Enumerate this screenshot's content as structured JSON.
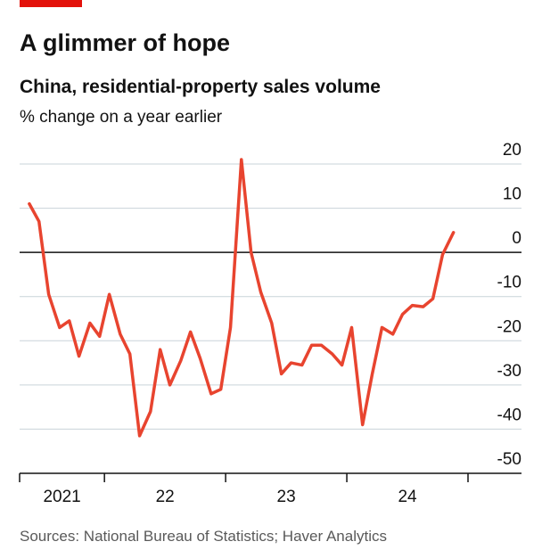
{
  "chart_data": {
    "type": "line",
    "title": "A glimmer of hope",
    "subtitle": "China, residential-property sales volume",
    "y_label": "% change on a year earlier",
    "source": "Sources: National Bureau of Statistics; Haver Analytics",
    "x": [
      2021.38,
      2021.46,
      2021.54,
      2021.63,
      2021.71,
      2021.79,
      2021.88,
      2021.96,
      2022.04,
      2022.13,
      2022.21,
      2022.29,
      2022.38,
      2022.46,
      2022.54,
      2022.63,
      2022.71,
      2022.79,
      2022.88,
      2022.96,
      2023.04,
      2023.13,
      2023.21,
      2023.29,
      2023.38,
      2023.46,
      2023.54,
      2023.63,
      2023.71,
      2023.79,
      2023.88,
      2023.96,
      2024.04,
      2024.13,
      2024.21,
      2024.29,
      2024.38,
      2024.46,
      2024.54,
      2024.63,
      2024.71,
      2024.79,
      2024.88
    ],
    "series": [
      {
        "color": "#e8442f",
        "values": [
          11,
          7,
          -9.5,
          -17,
          -15.5,
          -23.5,
          -16,
          -19,
          -9.5,
          -18.5,
          -23,
          -41.5,
          -36,
          -22,
          -30,
          -24.5,
          -18,
          -24,
          -32,
          -31,
          -17,
          21,
          0,
          -9,
          -16,
          -27.5,
          -25,
          -25.5,
          -21,
          -21,
          -23,
          -25.5,
          -17,
          -39,
          -27.5,
          -17,
          -18.5,
          -14,
          -12,
          -12.3,
          -10.5,
          -0.5,
          4.5
        ]
      }
    ],
    "xlim": [
      2021.3,
      2025
    ],
    "xticks": [
      2022,
      2023,
      2024,
      2025
    ],
    "year_labels": [
      {
        "value": 2021,
        "label": "2021"
      },
      {
        "value": 2022,
        "label": "22"
      },
      {
        "value": 2023,
        "label": "23"
      },
      {
        "value": 2024,
        "label": "24"
      }
    ],
    "ylim": [
      -50,
      20
    ],
    "yticks": [
      -50,
      -40,
      -30,
      -20,
      -10,
      0,
      10,
      20
    ],
    "grid": true
  }
}
